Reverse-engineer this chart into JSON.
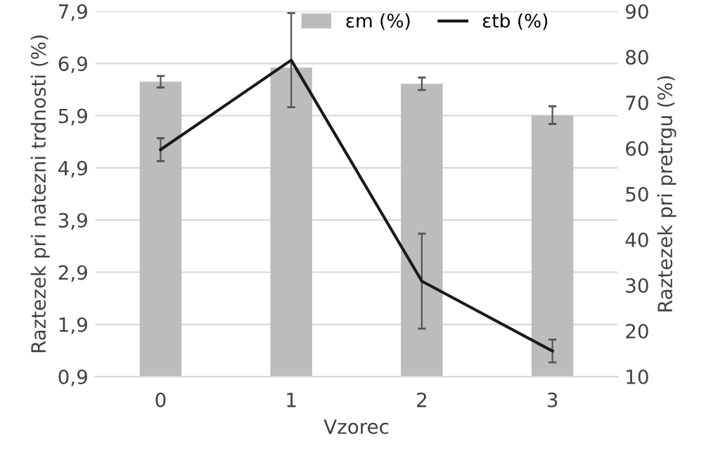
{
  "chart_data": {
    "type": "bar",
    "xlabel": "Vzorec",
    "ylabel": "Raztezek pri natezni trdnosti (%)",
    "y2label": "Raztezek pri pretrgu (%)",
    "categories": [
      "0",
      "1",
      "2",
      "3"
    ],
    "series": [
      {
        "name": "εm (%)",
        "color": "#bcbcbc",
        "values": [
          6.55,
          6.82,
          6.51,
          5.91
        ],
        "errors": [
          0.11,
          null,
          0.12,
          0.17
        ]
      },
      {
        "name": "εtb (%)",
        "type": "line",
        "axis": "y2",
        "color": "#1a1a1a",
        "values": [
          59.7,
          79.3,
          30.9,
          15.6
        ],
        "errors": [
          2.5,
          10.3,
          10.4,
          2.5
        ]
      }
    ],
    "ylim": [
      0.9,
      7.9
    ],
    "yticks": [
      {
        "value": 0.9,
        "label": "0,9"
      },
      {
        "value": 1.9,
        "label": "1,9"
      },
      {
        "value": 2.9,
        "label": "2,9"
      },
      {
        "value": 3.9,
        "label": "3,9"
      },
      {
        "value": 4.9,
        "label": "4,9"
      },
      {
        "value": 5.9,
        "label": "5,9"
      },
      {
        "value": 6.9,
        "label": "6,9"
      },
      {
        "value": 7.9,
        "label": "7,9"
      }
    ],
    "y2lim": [
      10,
      90
    ],
    "y2ticks": [
      10,
      20,
      30,
      40,
      50,
      60,
      70,
      80,
      90
    ],
    "grid": "y",
    "legend": "top right",
    "marker": "none",
    "line_style": "solid"
  }
}
